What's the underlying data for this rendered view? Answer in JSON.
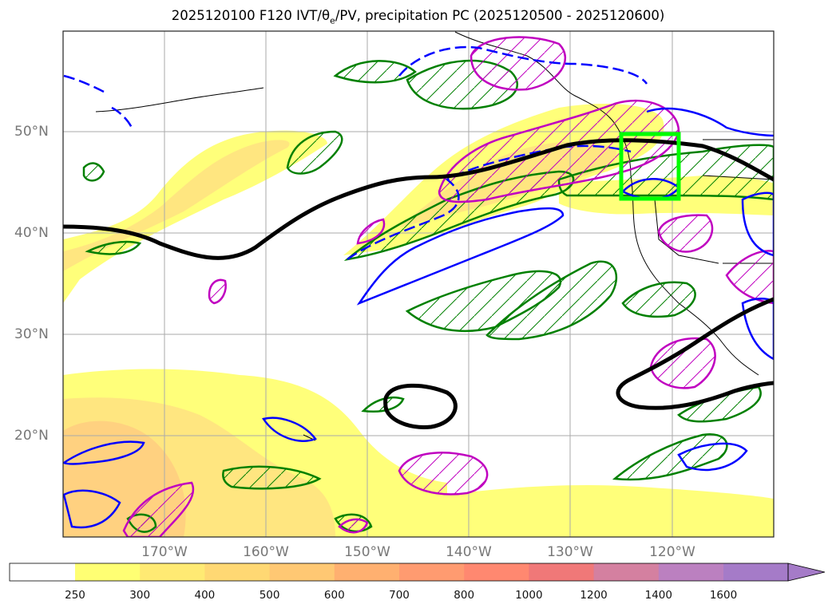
{
  "title": {
    "main": "2025120100 F120 IVT/θ",
    "sub": "e",
    "rest": "/PV, precipitation PC (2025120500 - 2025120600)"
  },
  "map": {
    "lat_labels": [
      "50°N",
      "40°N",
      "30°N",
      "20°N"
    ],
    "lon_labels": [
      "170°W",
      "160°W",
      "150°W",
      "140°W",
      "130°W",
      "120°W"
    ]
  },
  "colorbar": {
    "ticks": [
      "250",
      "300",
      "400",
      "500",
      "600",
      "700",
      "800",
      "1000",
      "1200",
      "1400",
      "1600"
    ],
    "colors": [
      "#ffff73",
      "#ffea73",
      "#ffd873",
      "#ffc873",
      "#ffb070",
      "#ff9b70",
      "#ff8870",
      "#f07878",
      "#d480a0",
      "#bb80c0",
      "#a57bc8"
    ]
  },
  "colors": {
    "ivt_light": "#ffff7a",
    "ivt_mid": "#ffe680",
    "ivt_orange": "#ffd180",
    "theta_contour": "#000000",
    "pv_positive": "#0000ff",
    "precip_green": "#008000",
    "precip_magenta": "#c000c0",
    "highlight_box": "#00ff00"
  }
}
